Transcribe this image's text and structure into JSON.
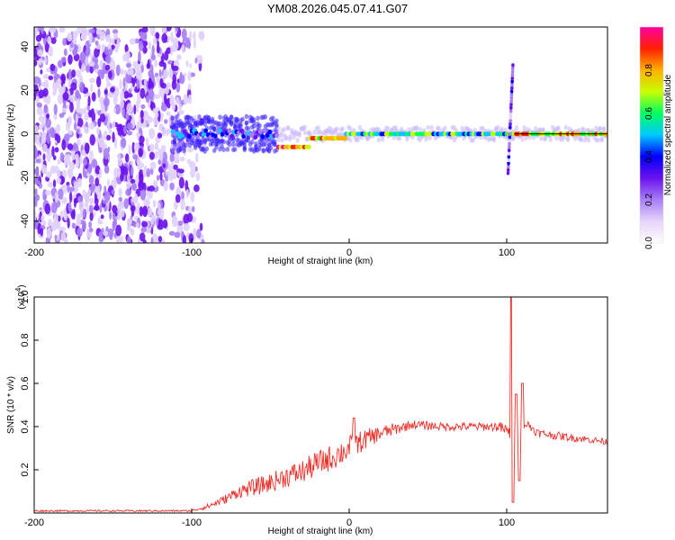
{
  "title": "YM08.2026.045.07.41.G07",
  "colors": {
    "snr_line": "#e8302a",
    "spectrogram_scatter": "#7a1fe0",
    "axis": "#000000"
  },
  "chart_data": [
    {
      "type": "heatmap",
      "name": "spectrogram",
      "xlabel": "Height of straight line (km)",
      "ylabel": "Frequency (Hz)",
      "xlim": [
        -200,
        164
      ],
      "ylim": [
        -50,
        49
      ],
      "x_ticks": [
        -200,
        -100,
        0,
        100
      ],
      "y_ticks": [
        -40,
        -20,
        0,
        20,
        40
      ],
      "ridge_segments": [
        {
          "x_start": -112,
          "x_end": -45,
          "freq_hz": 0,
          "level": 0.35
        },
        {
          "x_start": -45,
          "x_end": -25,
          "freq_hz": -6,
          "level": 0.85
        },
        {
          "x_start": -25,
          "x_end": -2,
          "freq_hz": -2,
          "level": 0.8
        },
        {
          "x_start": -2,
          "x_end": 100,
          "freq_hz": 0,
          "level": 0.55
        },
        {
          "x_start": 100,
          "x_end": 164,
          "freq_hz": 0,
          "level": 0.75
        }
      ],
      "transient_feature": {
        "x": 102,
        "freq_min_hz": -18,
        "freq_max_hz": 32
      },
      "noise_region_x": [
        -200,
        -95
      ],
      "colorbar": {
        "label": "Normalized spectral amplitude",
        "min": 0.0,
        "max": 1.0,
        "ticks": [
          "0.0",
          "0.2",
          "0.4",
          "0.6",
          "0.8"
        ],
        "stops": [
          "#ffffff",
          "#e6d4fb",
          "#a77ef7",
          "#6b12ee",
          "#0000ff",
          "#00c8ff",
          "#00ff60",
          "#c8ff00",
          "#ffb000",
          "#ff2000",
          "#ff00a0"
        ]
      }
    },
    {
      "type": "line",
      "name": "snr",
      "xlabel": "Height of straight line (km)",
      "ylabel": "SNR (10 * v/v)",
      "exponent_label": "(x10",
      "exponent_power": "4",
      "exponent_close": ")",
      "xlim": [
        -200,
        164
      ],
      "ylim": [
        0.0,
        1.0
      ],
      "x_ticks": [
        -200,
        -100,
        0,
        100
      ],
      "y_ticks": [
        "0.2",
        "0.4",
        "0.6",
        "0.8",
        "1.0"
      ],
      "trend_x": [
        -200,
        -100,
        -90,
        -80,
        -70,
        -60,
        -50,
        -40,
        -30,
        -20,
        -10,
        0,
        10,
        20,
        30,
        40,
        60,
        80,
        95,
        100,
        105,
        110,
        115,
        120,
        140,
        164
      ],
      "trend_y": [
        0.01,
        0.01,
        0.03,
        0.06,
        0.1,
        0.12,
        0.14,
        0.17,
        0.19,
        0.23,
        0.26,
        0.3,
        0.34,
        0.37,
        0.39,
        0.41,
        0.4,
        0.4,
        0.4,
        0.38,
        0.35,
        0.42,
        0.4,
        0.37,
        0.35,
        0.33
      ],
      "noise_x": [
        -200,
        -100,
        -80,
        -60,
        -40,
        -20,
        0,
        20,
        40,
        90,
        100,
        120,
        164
      ],
      "noise_amp": [
        0.004,
        0.004,
        0.02,
        0.04,
        0.05,
        0.06,
        0.06,
        0.035,
        0.02,
        0.02,
        0.03,
        0.02,
        0.015
      ],
      "spikes": [
        {
          "x": 3,
          "y": 0.44
        },
        {
          "x": 103,
          "y": 1.0
        },
        {
          "x": 104,
          "y": 0.05
        },
        {
          "x": 106,
          "y": 0.55
        },
        {
          "x": 108,
          "y": 0.15
        },
        {
          "x": 110,
          "y": 0.6
        }
      ]
    }
  ]
}
